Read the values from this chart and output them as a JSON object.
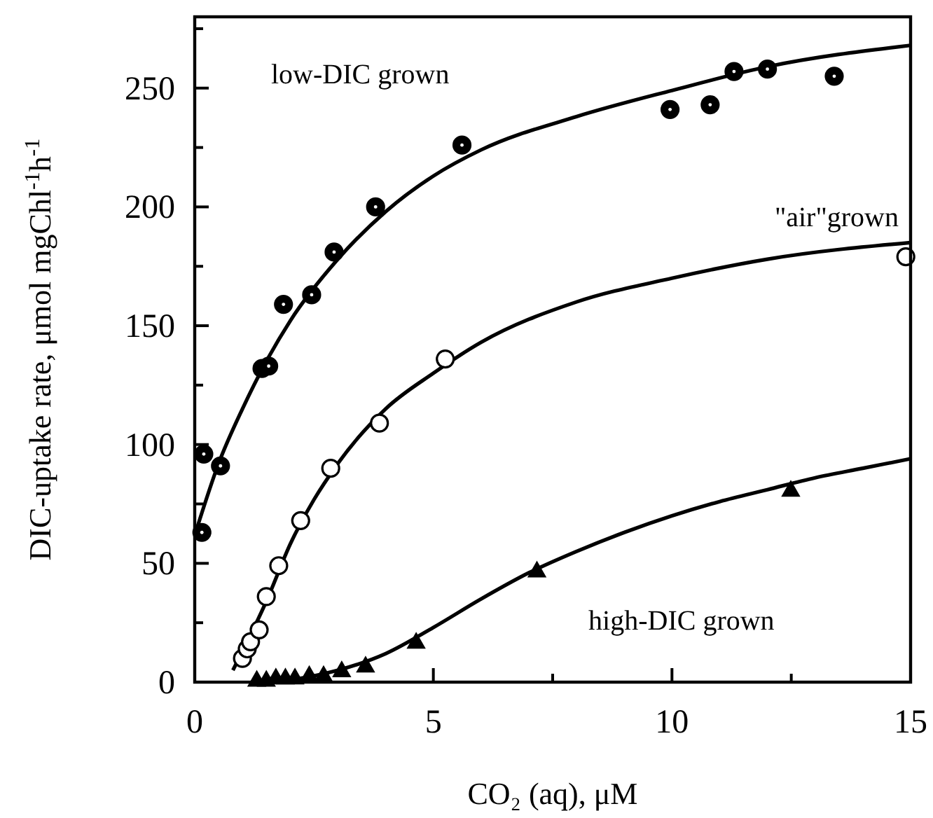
{
  "chart_data": {
    "type": "scatter",
    "xlabel": "CO₂ (aq), μM",
    "ylabel": "DIC-uptake rate, μmol mgChl$^{-1}$h$^{-1}$",
    "xlim": [
      0,
      15
    ],
    "xticks": [
      0,
      {
        "value": 2.5,
        "label": null
      },
      5,
      {
        "value": 7.5,
        "label": null
      },
      10,
      {
        "value": 12.5,
        "label": null
      },
      15
    ],
    "ylim": [
      0,
      280
    ],
    "yticks": [
      0,
      {
        "value": 25,
        "label": null
      },
      50,
      {
        "value": 75,
        "label": null
      },
      100,
      {
        "value": 125,
        "label": null
      },
      150,
      {
        "value": 175,
        "label": null
      },
      200,
      {
        "value": 225,
        "label": null
      },
      250,
      {
        "value": 275,
        "label": null
      }
    ],
    "grid": false,
    "series": [
      {
        "name": "low-DIC grown",
        "marker": "circle",
        "color": "#000000",
        "x": [
          0.15,
          0.19,
          0.54,
          1.41,
          1.55,
          1.86,
          2.45,
          2.92,
          3.79,
          5.6,
          9.96,
          10.8,
          11.3,
          12.0,
          13.4
        ],
        "values": [
          63,
          96,
          91,
          132,
          133,
          159,
          163,
          181,
          200,
          226,
          241,
          243,
          257,
          258,
          255
        ]
      },
      {
        "name": "\"air\"grown",
        "marker": "circle",
        "color": "#ffffff",
        "x": [
          1.0,
          1.1,
          1.17,
          1.35,
          1.5,
          1.76,
          2.22,
          2.85,
          3.87,
          5.25,
          14.9
        ],
        "values": [
          10,
          14,
          17,
          22,
          36,
          49,
          68,
          90,
          109,
          136,
          179
        ]
      },
      {
        "name": "high-DIC grown",
        "marker": "triangle",
        "color": "#000000",
        "x": [
          1.3,
          1.5,
          1.7,
          1.9,
          2.1,
          2.4,
          2.7,
          3.08,
          3.58,
          4.64,
          7.17,
          12.49
        ],
        "values": [
          1,
          1,
          2,
          2,
          2,
          3,
          3,
          5,
          7,
          17,
          47,
          81
        ]
      },
      {
        "type": "line",
        "color": "#000000",
        "x": [
          0.05,
          0.5,
          1,
          1.5,
          2,
          3,
          4,
          5,
          6,
          8,
          10,
          12,
          15
        ],
        "values": [
          65,
          92,
          115,
          135,
          152,
          178,
          198,
          213,
          224,
          238,
          249,
          259,
          268
        ]
      },
      {
        "type": "line",
        "color": "#000000",
        "x": [
          0.8,
          1.5,
          2,
          3,
          4,
          5,
          6,
          8,
          10,
          12,
          15
        ],
        "values": [
          5,
          34,
          58,
          92,
          115,
          130,
          143,
          160,
          170,
          178,
          185
        ]
      },
      {
        "type": "line",
        "color": "#000000",
        "x": [
          1.2,
          2,
          3,
          4,
          5,
          6,
          7,
          8,
          9,
          10,
          11,
          12,
          13,
          14,
          15
        ],
        "values": [
          0,
          1,
          5,
          12,
          23,
          35,
          46,
          55,
          63,
          70,
          76,
          81,
          86,
          90,
          94
        ]
      }
    ]
  }
}
